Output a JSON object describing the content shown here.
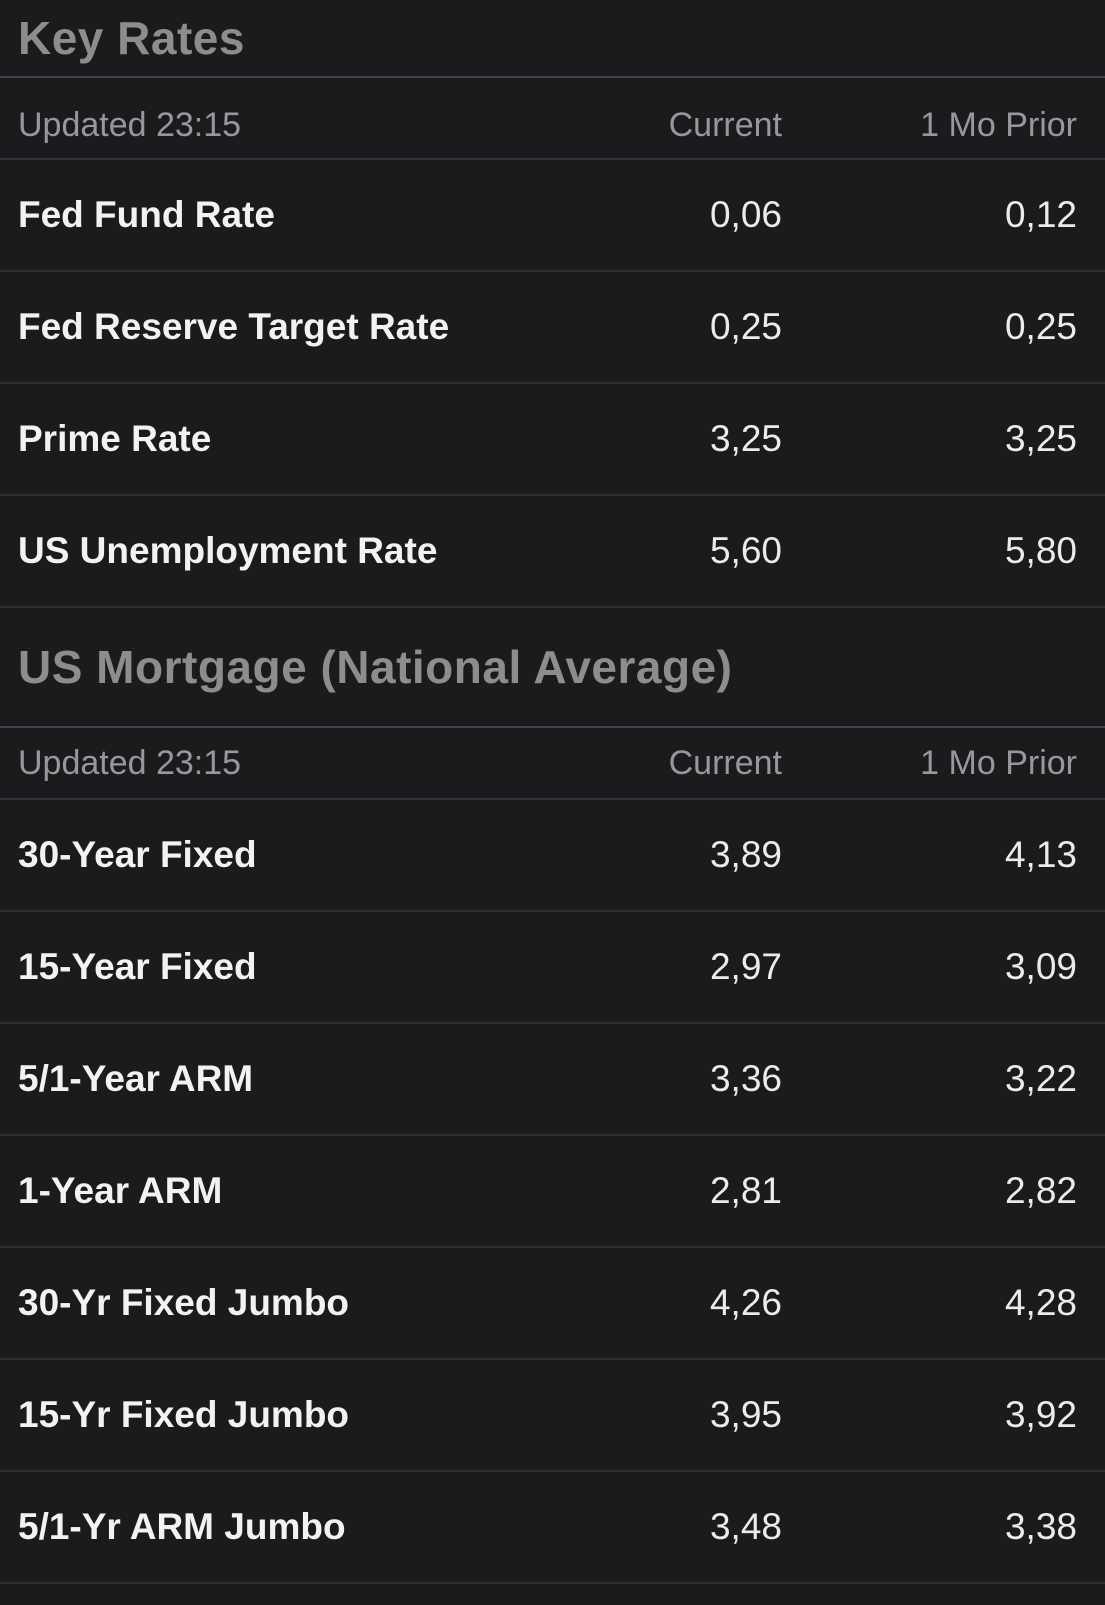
{
  "colors": {
    "background": "#1b1b1d",
    "section_title_text": "#8d8d90",
    "subheader_text": "#98989c",
    "row_text": "#f2f2f4",
    "title_divider": "#454549",
    "row_divider": "#2d2d30"
  },
  "sections": [
    {
      "title": "Key Rates",
      "updated_label": "Updated 23:15",
      "columns": {
        "current": "Current",
        "prior": "1 Mo Prior"
      },
      "rows": [
        {
          "label": "Fed Fund Rate",
          "current": "0,06",
          "prior": "0,12"
        },
        {
          "label": "Fed Reserve Target Rate",
          "current": "0,25",
          "prior": "0,25"
        },
        {
          "label": "Prime Rate",
          "current": "3,25",
          "prior": "3,25"
        },
        {
          "label": "US Unemployment Rate",
          "current": "5,60",
          "prior": "5,80"
        }
      ]
    },
    {
      "title": "US Mortgage (National Average)",
      "updated_label": "Updated 23:15",
      "columns": {
        "current": "Current",
        "prior": "1 Mo Prior"
      },
      "rows": [
        {
          "label": "30-Year Fixed",
          "current": "3,89",
          "prior": "4,13"
        },
        {
          "label": "15-Year Fixed",
          "current": "2,97",
          "prior": "3,09"
        },
        {
          "label": "5/1-Year ARM",
          "current": "3,36",
          "prior": "3,22"
        },
        {
          "label": "1-Year ARM",
          "current": "2,81",
          "prior": "2,82"
        },
        {
          "label": "30-Yr Fixed Jumbo",
          "current": "4,26",
          "prior": "4,28"
        },
        {
          "label": "15-Yr Fixed Jumbo",
          "current": "3,95",
          "prior": "3,92"
        },
        {
          "label": "5/1-Yr ARM Jumbo",
          "current": "3,48",
          "prior": "3,38"
        }
      ]
    }
  ]
}
